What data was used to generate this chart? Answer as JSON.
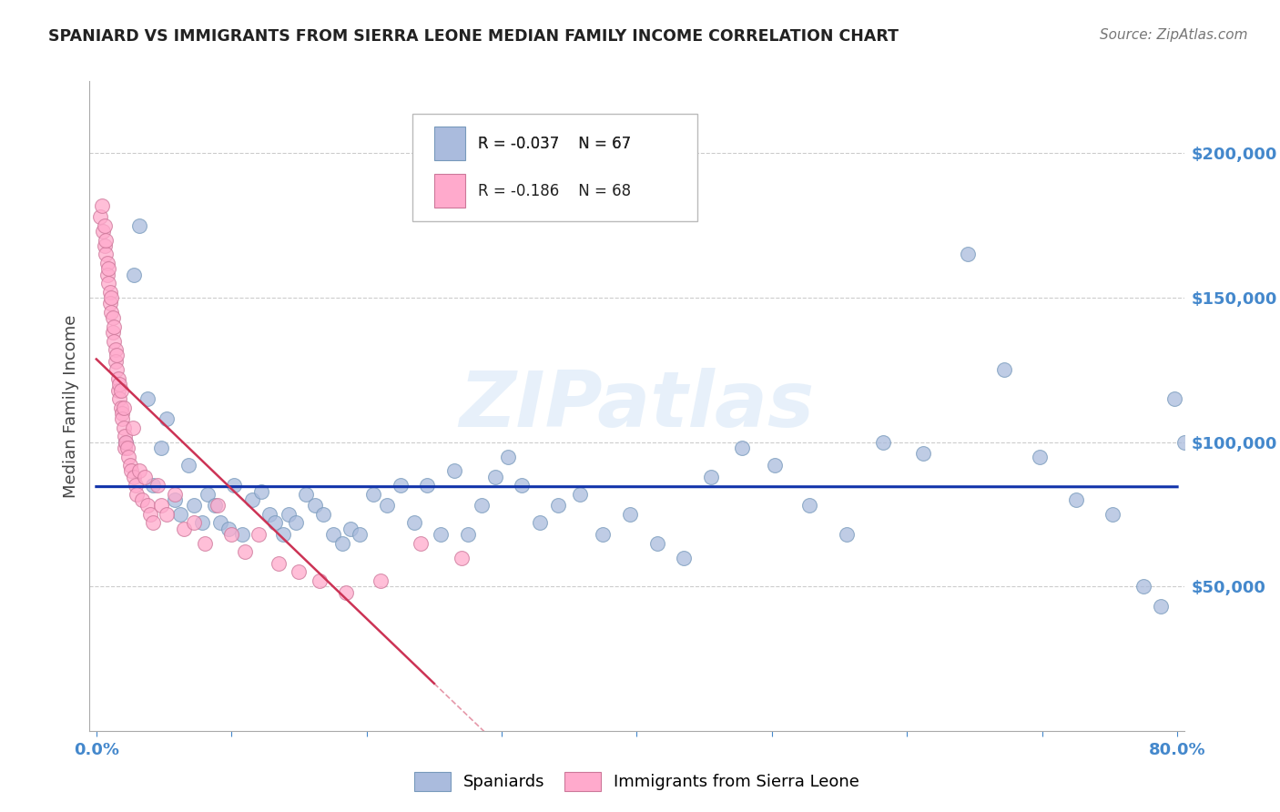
{
  "title": "SPANIARD VS IMMIGRANTS FROM SIERRA LEONE MEDIAN FAMILY INCOME CORRELATION CHART",
  "source": "Source: ZipAtlas.com",
  "ylabel": "Median Family Income",
  "ytick_values": [
    0,
    50000,
    100000,
    150000,
    200000
  ],
  "ytick_labels": [
    "",
    "$50,000",
    "$100,000",
    "$150,000",
    "$200,000"
  ],
  "ymax": 225000,
  "xmax": 0.8,
  "legend_r1": "-0.037",
  "legend_n1": "67",
  "legend_r2": "-0.186",
  "legend_n2": "68",
  "blue_color": "#aabbdd",
  "pink_color": "#ffaacc",
  "line_blue_color": "#1133aa",
  "line_pink_color": "#cc3355",
  "tick_color": "#4488cc",
  "watermark": "ZIPatlas",
  "blue_scatter_x": [
    0.022,
    0.028,
    0.032,
    0.038,
    0.042,
    0.048,
    0.052,
    0.058,
    0.062,
    0.068,
    0.072,
    0.078,
    0.082,
    0.088,
    0.092,
    0.098,
    0.102,
    0.108,
    0.115,
    0.122,
    0.128,
    0.132,
    0.138,
    0.142,
    0.148,
    0.155,
    0.162,
    0.168,
    0.175,
    0.182,
    0.188,
    0.195,
    0.205,
    0.215,
    0.225,
    0.235,
    0.245,
    0.255,
    0.265,
    0.275,
    0.285,
    0.295,
    0.305,
    0.315,
    0.328,
    0.342,
    0.358,
    0.375,
    0.395,
    0.415,
    0.435,
    0.455,
    0.478,
    0.502,
    0.528,
    0.555,
    0.582,
    0.612,
    0.645,
    0.672,
    0.698,
    0.725,
    0.752,
    0.775,
    0.788,
    0.798,
    0.805
  ],
  "blue_scatter_y": [
    100000,
    158000,
    175000,
    115000,
    85000,
    98000,
    108000,
    80000,
    75000,
    92000,
    78000,
    72000,
    82000,
    78000,
    72000,
    70000,
    85000,
    68000,
    80000,
    83000,
    75000,
    72000,
    68000,
    75000,
    72000,
    82000,
    78000,
    75000,
    68000,
    65000,
    70000,
    68000,
    82000,
    78000,
    85000,
    72000,
    85000,
    68000,
    90000,
    68000,
    78000,
    88000,
    95000,
    85000,
    72000,
    78000,
    82000,
    68000,
    75000,
    65000,
    60000,
    88000,
    98000,
    92000,
    78000,
    68000,
    100000,
    96000,
    165000,
    125000,
    95000,
    80000,
    75000,
    50000,
    43000,
    115000,
    100000
  ],
  "pink_scatter_x": [
    0.003,
    0.004,
    0.005,
    0.006,
    0.006,
    0.007,
    0.007,
    0.008,
    0.008,
    0.009,
    0.009,
    0.01,
    0.01,
    0.011,
    0.011,
    0.012,
    0.012,
    0.013,
    0.013,
    0.014,
    0.014,
    0.015,
    0.015,
    0.016,
    0.016,
    0.017,
    0.017,
    0.018,
    0.018,
    0.019,
    0.019,
    0.02,
    0.02,
    0.021,
    0.021,
    0.022,
    0.023,
    0.024,
    0.025,
    0.026,
    0.027,
    0.028,
    0.029,
    0.03,
    0.032,
    0.034,
    0.036,
    0.038,
    0.04,
    0.042,
    0.045,
    0.048,
    0.052,
    0.058,
    0.065,
    0.072,
    0.08,
    0.09,
    0.1,
    0.11,
    0.12,
    0.135,
    0.15,
    0.165,
    0.185,
    0.21,
    0.24,
    0.27
  ],
  "pink_scatter_y": [
    178000,
    182000,
    173000,
    168000,
    175000,
    165000,
    170000,
    162000,
    158000,
    155000,
    160000,
    152000,
    148000,
    145000,
    150000,
    143000,
    138000,
    140000,
    135000,
    132000,
    128000,
    130000,
    125000,
    122000,
    118000,
    120000,
    115000,
    112000,
    118000,
    110000,
    108000,
    105000,
    112000,
    102000,
    98000,
    100000,
    98000,
    95000,
    92000,
    90000,
    105000,
    88000,
    85000,
    82000,
    90000,
    80000,
    88000,
    78000,
    75000,
    72000,
    85000,
    78000,
    75000,
    82000,
    70000,
    72000,
    65000,
    78000,
    68000,
    62000,
    68000,
    58000,
    55000,
    52000,
    48000,
    52000,
    65000,
    60000
  ]
}
